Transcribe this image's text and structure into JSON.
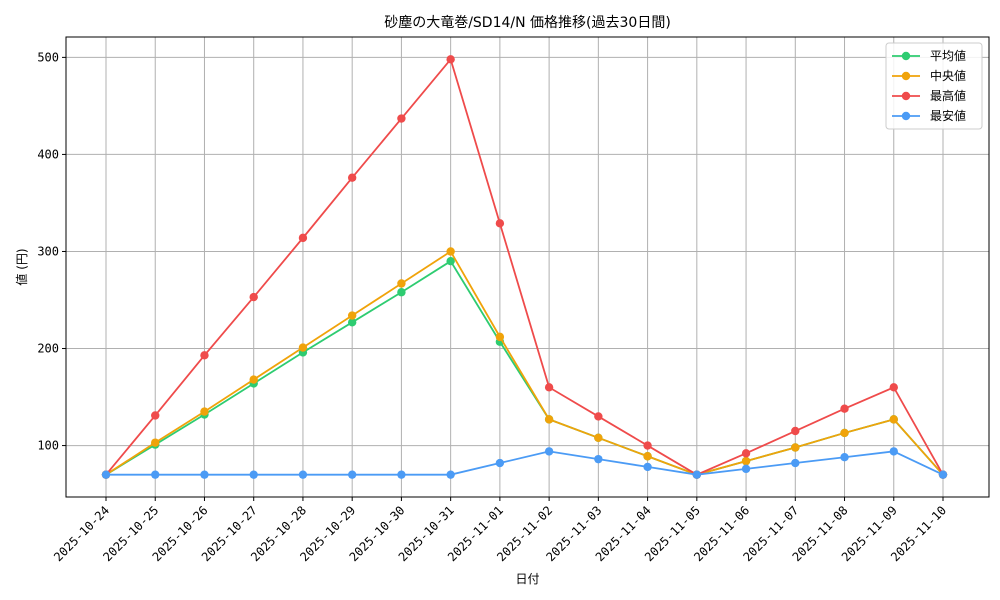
{
  "chart_data": {
    "type": "line",
    "title": "砂塵の大竜巻/SD14/N 価格推移(過去30日間)",
    "xlabel": "日付",
    "ylabel": "値 (円)",
    "x": [
      "2025-10-24",
      "2025-10-25",
      "2025-10-26",
      "2025-10-27",
      "2025-10-28",
      "2025-10-29",
      "2025-10-30",
      "2025-10-31",
      "2025-11-01",
      "2025-11-02",
      "2025-11-03",
      "2025-11-04",
      "2025-11-05",
      "2025-11-06",
      "2025-11-07",
      "2025-11-08",
      "2025-11-09",
      "2025-11-10"
    ],
    "yticks": [
      100,
      200,
      300,
      400,
      500
    ],
    "ylim": [
      47,
      521
    ],
    "grid": true,
    "legend_position": "top-right",
    "series": [
      {
        "name": "平均値",
        "color": "#2ecc71",
        "values": [
          70,
          101,
          132,
          164,
          196,
          227,
          258,
          290,
          207,
          127,
          108,
          89,
          70,
          84,
          98,
          113,
          127,
          70
        ]
      },
      {
        "name": "中央値",
        "color": "#f0a30a",
        "values": [
          70,
          103,
          135,
          168,
          201,
          234,
          267,
          300,
          212,
          127,
          108,
          89,
          70,
          84,
          98,
          113,
          127,
          70
        ]
      },
      {
        "name": "最高値",
        "color": "#ef4b4b",
        "values": [
          70,
          131,
          193,
          253,
          314,
          376,
          437,
          498,
          329,
          160,
          130,
          100,
          70,
          92,
          115,
          138,
          160,
          70
        ]
      },
      {
        "name": "最安値",
        "color": "#4b9bf5",
        "values": [
          70,
          70,
          70,
          70,
          70,
          70,
          70,
          70,
          82,
          94,
          86,
          78,
          70,
          76,
          82,
          88,
          94,
          70
        ]
      }
    ]
  }
}
